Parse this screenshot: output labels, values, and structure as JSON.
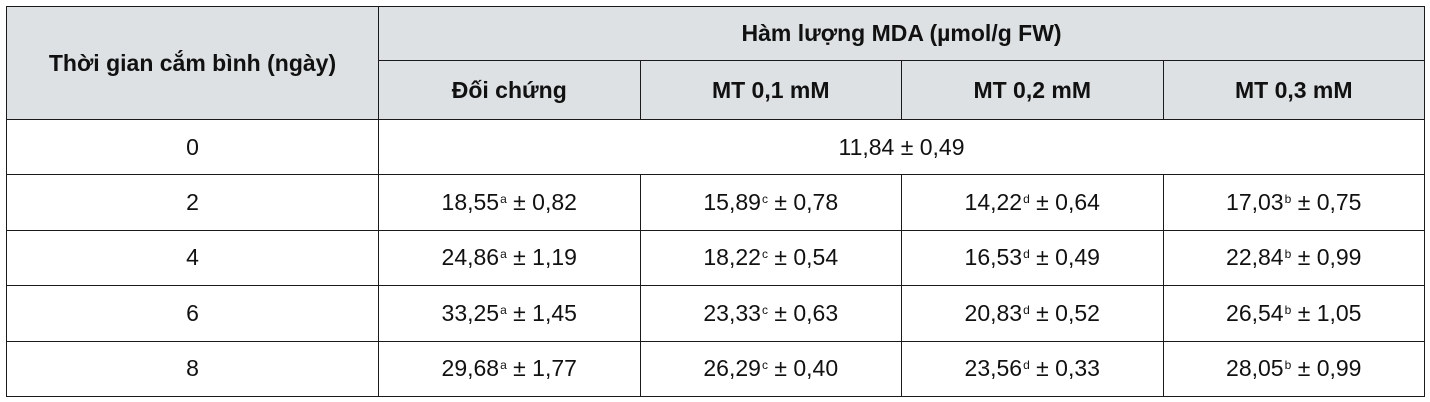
{
  "table": {
    "row_header": "Thời gian cắm bình (ngày)",
    "group_header": "Hàm lượng MDA (µmol/g FW)",
    "columns": [
      "Đối chứng",
      "MT 0,1 mM",
      "MT 0,2 mM",
      "MT 0,3 mM"
    ],
    "rows": [
      {
        "day": "0",
        "merged": "11,84 ± 0,49"
      },
      {
        "day": "2",
        "cells": [
          {
            "value": "18,55",
            "sup": "a",
            "sd": "± 0,82"
          },
          {
            "value": "15,89",
            "sup": "c",
            "sd": "± 0,78"
          },
          {
            "value": "14,22",
            "sup": "d",
            "sd": "± 0,64"
          },
          {
            "value": "17,03",
            "sup": "b",
            "sd": "± 0,75"
          }
        ]
      },
      {
        "day": "4",
        "cells": [
          {
            "value": "24,86",
            "sup": "a",
            "sd": "± 1,19"
          },
          {
            "value": "18,22",
            "sup": "c",
            "sd": "± 0,54"
          },
          {
            "value": "16,53",
            "sup": "d",
            "sd": "± 0,49"
          },
          {
            "value": "22,84",
            "sup": "b",
            "sd": "± 0,99"
          }
        ]
      },
      {
        "day": "6",
        "cells": [
          {
            "value": "33,25",
            "sup": "a",
            "sd": "± 1,45"
          },
          {
            "value": "23,33",
            "sup": "c",
            "sd": "± 0,63"
          },
          {
            "value": "20,83",
            "sup": "d",
            "sd": "± 0,52"
          },
          {
            "value": "26,54",
            "sup": "b",
            "sd": "± 1,05"
          }
        ]
      },
      {
        "day": "8",
        "cells": [
          {
            "value": "29,68",
            "sup": "a",
            "sd": "± 1,77"
          },
          {
            "value": "26,29",
            "sup": "c",
            "sd": "± 0,40"
          },
          {
            "value": "23,56",
            "sup": "d",
            "sd": "± 0,33"
          },
          {
            "value": "28,05",
            "sup": "b",
            "sd": "± 0,99"
          }
        ]
      }
    ]
  },
  "colors": {
    "header_background": "#dde1e3",
    "border": "#1a1a1a",
    "text": "#111111"
  }
}
